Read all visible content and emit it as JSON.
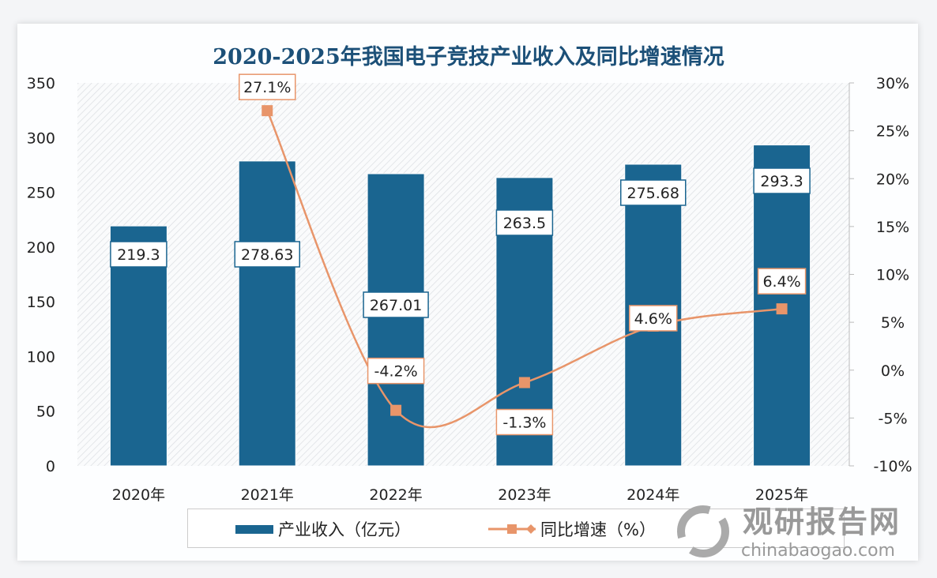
{
  "chart_data": {
    "type": "bar+line",
    "title": "2020-2025年我国电子竞技产业收入及同比增速情况",
    "categories": [
      "2020年",
      "2021年",
      "2022年",
      "2023年",
      "2024年",
      "2025年"
    ],
    "series": [
      {
        "name": "产业收入（亿元）",
        "type": "bar",
        "axis": "left",
        "values": [
          219.3,
          278.63,
          267.01,
          263.5,
          275.68,
          293.3
        ],
        "labels": [
          "219.3",
          "278.63",
          "267.01",
          "263.5",
          "275.68",
          "293.3"
        ],
        "color": "#1a6590"
      },
      {
        "name": "同比增速（%）",
        "type": "line",
        "axis": "right",
        "values": [
          null,
          27.1,
          -4.2,
          -1.3,
          4.6,
          6.4
        ],
        "labels": [
          "",
          "27.1%",
          "-4.2%",
          "-1.3%",
          "4.6%",
          "6.4%"
        ],
        "color": "#e8956a"
      }
    ],
    "left_axis": {
      "min": 0,
      "max": 350,
      "ticks": [
        "0",
        "50",
        "100",
        "150",
        "200",
        "250",
        "300",
        "350"
      ]
    },
    "right_axis": {
      "min": -10,
      "max": 30,
      "ticks": [
        "-10%",
        "-5%",
        "0%",
        "5%",
        "10%",
        "15%",
        "20%",
        "25%",
        "30%"
      ]
    },
    "legend": "bottom",
    "grid": false
  },
  "watermark": {
    "name": "观研报告网",
    "url": "chinabaogao.com"
  }
}
